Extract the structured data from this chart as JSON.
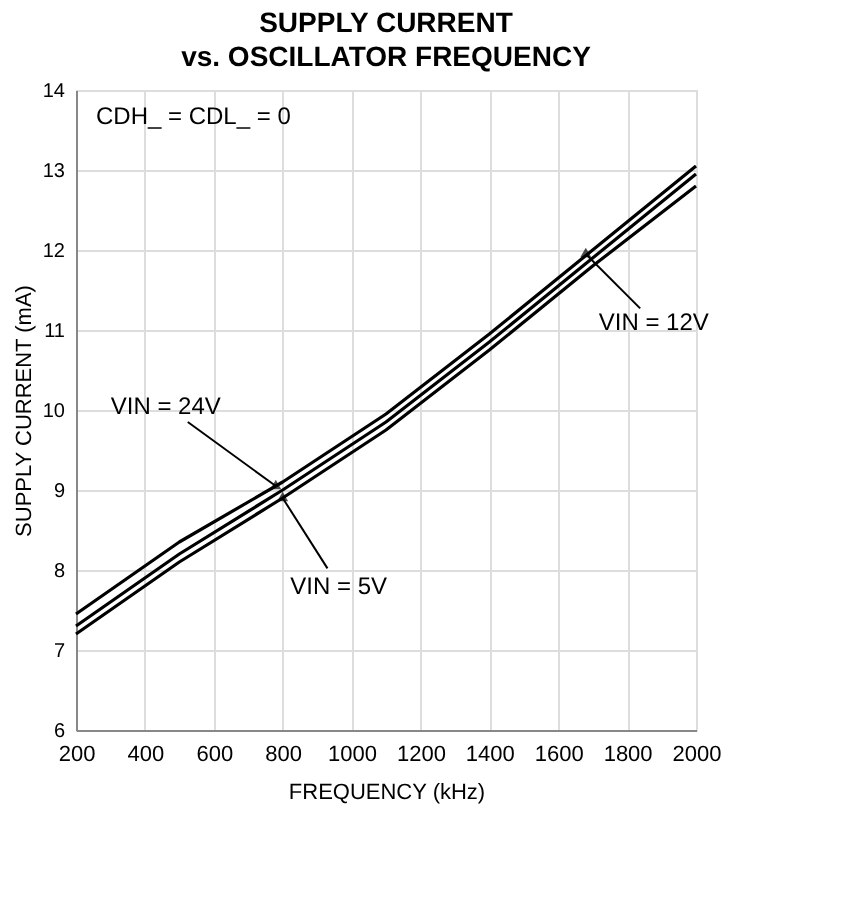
{
  "chart_data": {
    "type": "line",
    "title": "SUPPLY CURRENT",
    "subtitle": "vs. OSCILLATOR FREQUENCY",
    "xlabel": "FREQUENCY (kHz)",
    "ylabel": "SUPPLY CURRENT (mA)",
    "x": [
      200,
      500,
      800,
      1100,
      1400,
      1700,
      2000
    ],
    "series": [
      {
        "color": "#000000",
        "values": [
          7.45,
          8.35,
          9.1,
          9.95,
          10.95,
          12.0,
          13.05
        ]
      },
      {
        "color": "#000000",
        "values": [
          7.3,
          8.2,
          9.0,
          9.85,
          10.85,
          11.9,
          12.95
        ]
      },
      {
        "color": "#000000",
        "values": [
          7.2,
          8.1,
          8.9,
          9.75,
          10.75,
          11.8,
          12.8
        ]
      }
    ],
    "xlim": [
      200,
      2000
    ],
    "xticks": [
      200,
      400,
      600,
      800,
      1000,
      1200,
      1400,
      1600,
      1800,
      2000
    ],
    "ylim": [
      6,
      14
    ],
    "yticks": [
      6,
      7,
      8,
      9,
      10,
      11,
      12,
      13,
      14
    ],
    "grid": true,
    "legend": false,
    "marker": "none",
    "line_style": "solid",
    "annotations": [
      "CDH_ = CDL_ = 0",
      {
        "text": "VIN = 24V",
        "x": 780,
        "y": 9.05
      },
      {
        "text": "VIN = 5V",
        "x": 800,
        "y": 8.9
      },
      {
        "text": "VIN = 12V",
        "x": 1680,
        "y": 11.95
      }
    ]
  }
}
